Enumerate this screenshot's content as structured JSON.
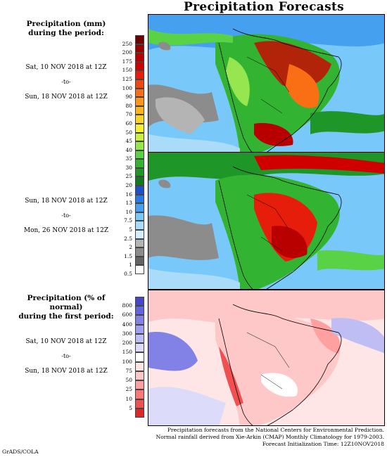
{
  "title": "Precipitation Forecasts",
  "precip_heading": [
    "Precipitation (mm)",
    "during the period:"
  ],
  "period1": {
    "start": "Sat, 10 NOV 2018 at 12Z",
    "sep": "-to-",
    "end": "Sun, 18 NOV 2018 at 12Z"
  },
  "period2": {
    "start": "Sun, 18 NOV 2018 at 12Z",
    "sep": "-to-",
    "end": "Mon, 26 NOV 2018 at 12Z"
  },
  "anomaly_heading": [
    "Precipitation (% of normal)",
    "during the first period:"
  ],
  "period3": {
    "start": "Sat, 10 NOV 2018 at 12Z",
    "sep": "-to-",
    "end": "Sun, 18 NOV 2018 at 12Z"
  },
  "precip_scale": {
    "labels": [
      "250",
      "200",
      "175",
      "150",
      "125",
      "100",
      "90",
      "80",
      "70",
      "60",
      "50",
      "45",
      "40",
      "35",
      "30",
      "25",
      "20",
      "16",
      "13",
      "10",
      "7.5",
      "5",
      "2.5",
      "2",
      "1.5",
      "1",
      "0.5"
    ],
    "colors": [
      "#6e0000",
      "#960000",
      "#b80000",
      "#d10000",
      "#e61d0a",
      "#f0460f",
      "#fa6e14",
      "#ff9619",
      "#ffb41e",
      "#ffd228",
      "#f5f032",
      "#c8f03c",
      "#96e650",
      "#5ad246",
      "#32b432",
      "#1e9628",
      "#14781e",
      "#1e50c8",
      "#2878e6",
      "#46a0f0",
      "#78c8fa",
      "#aadcfa",
      "#d2eefc",
      "#b4b4b4",
      "#8c8c8c",
      "#646464",
      "#ffffff"
    ]
  },
  "anomaly_scale": {
    "labels": [
      "800",
      "600",
      "400",
      "300",
      "200",
      "150",
      "100",
      "75",
      "50",
      "25",
      "10",
      "5"
    ],
    "colors": [
      "#4646c8",
      "#6464dc",
      "#8282e6",
      "#a0a0f0",
      "#bebef5",
      "#dcdcfa",
      "#ffffff",
      "#ffe6e6",
      "#ffc8c8",
      "#ffa0a0",
      "#ff7878",
      "#f05050",
      "#dc2828"
    ]
  },
  "footer": [
    "Precipitation forecasts from the National Centers for Environmental Prediction.",
    "Normal rainfall derived from Xie-Arkin (CMAP) Monthly Climatology for 1979-2003.",
    "Forecast Initialization Time: 12Z10NOV2018"
  ],
  "credit": "GrADS/COLA"
}
